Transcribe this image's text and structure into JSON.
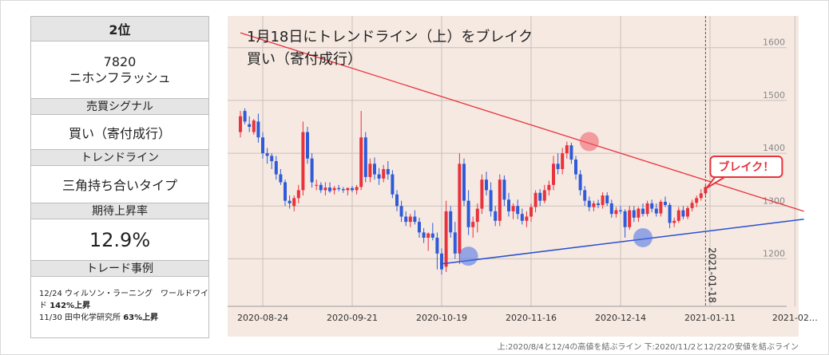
{
  "panel": {
    "rank": "2位",
    "code": "7820",
    "company": "ニホンフラッシュ",
    "signal_header": "売買シグナル",
    "signal_value": "買い（寄付成行）",
    "trend_header": "トレンドライン",
    "trend_value": "三角持ち合いタイプ",
    "rate_header": "期待上昇率",
    "rate_value": "12.9%",
    "cases_header": "トレード事例",
    "case1_text": "12/24 ウィルソン・ラーニング　ワールドワイド ",
    "case1_rate": "142%上昇",
    "case2_text": "11/30 田中化学研究所 ",
    "case2_rate": "63%上昇"
  },
  "footer_note": "上:2020/8/4と12/4の高値を結ぶライン 下:2020/11/2と12/22の安値を結ぶライン",
  "colors": {
    "up": "#e8323c",
    "down": "#2f5bd8",
    "upper_line": "#e8323c",
    "lower_line": "#2a4fd0",
    "bg": "#f6e9e2"
  },
  "chart_data": {
    "type": "candlestick",
    "title_line1": "1月18日にトレンドライン（上）をブレイク",
    "title_line2": "買い（寄付成行）",
    "break_label": "ブレイク！",
    "vline_label": "2021-01-18",
    "x_labels": [
      "2020-08-24",
      "2020-09-21",
      "2020-10-19",
      "2020-11-16",
      "2020-12-14",
      "2021-01-11",
      "2021-02…"
    ],
    "x_label_index": [
      5,
      25,
      45,
      65,
      85,
      105,
      124
    ],
    "y_ticks": [
      1200,
      1300,
      1400,
      1500,
      1600
    ],
    "ylim": [
      1110,
      1660
    ],
    "candles": [
      [
        1440,
        1480,
        1430,
        1470
      ],
      [
        1480,
        1485,
        1455,
        1460
      ],
      [
        1455,
        1470,
        1440,
        1450
      ],
      [
        1440,
        1465,
        1435,
        1462
      ],
      [
        1460,
        1475,
        1420,
        1430
      ],
      [
        1430,
        1440,
        1390,
        1400
      ],
      [
        1400,
        1410,
        1380,
        1395
      ],
      [
        1395,
        1400,
        1370,
        1385
      ],
      [
        1385,
        1395,
        1350,
        1360
      ],
      [
        1360,
        1370,
        1340,
        1345
      ],
      [
        1345,
        1350,
        1300,
        1310
      ],
      [
        1310,
        1320,
        1295,
        1305
      ],
      [
        1300,
        1320,
        1290,
        1315
      ],
      [
        1315,
        1340,
        1305,
        1330
      ],
      [
        1330,
        1460,
        1320,
        1440
      ],
      [
        1440,
        1450,
        1380,
        1390
      ],
      [
        1390,
        1400,
        1335,
        1345
      ],
      [
        1340,
        1350,
        1330,
        1340
      ],
      [
        1340,
        1345,
        1325,
        1330
      ],
      [
        1330,
        1345,
        1320,
        1335
      ],
      [
        1335,
        1345,
        1325,
        1328
      ],
      [
        1330,
        1338,
        1322,
        1334
      ],
      [
        1334,
        1340,
        1328,
        1332
      ],
      [
        1332,
        1336,
        1325,
        1330
      ],
      [
        1330,
        1335,
        1320,
        1334
      ],
      [
        1334,
        1338,
        1326,
        1330
      ],
      [
        1330,
        1340,
        1322,
        1336
      ],
      [
        1336,
        1480,
        1330,
        1430
      ],
      [
        1430,
        1440,
        1345,
        1355
      ],
      [
        1355,
        1390,
        1345,
        1380
      ],
      [
        1380,
        1392,
        1350,
        1360
      ],
      [
        1360,
        1372,
        1340,
        1352
      ],
      [
        1352,
        1378,
        1345,
        1370
      ],
      [
        1370,
        1385,
        1350,
        1360
      ],
      [
        1360,
        1368,
        1315,
        1322
      ],
      [
        1322,
        1330,
        1290,
        1300
      ],
      [
        1300,
        1310,
        1270,
        1280
      ],
      [
        1280,
        1290,
        1262,
        1270
      ],
      [
        1270,
        1285,
        1260,
        1280
      ],
      [
        1280,
        1292,
        1265,
        1270
      ],
      [
        1270,
        1278,
        1240,
        1250
      ],
      [
        1250,
        1258,
        1230,
        1240
      ],
      [
        1240,
        1250,
        1215,
        1248
      ],
      [
        1248,
        1268,
        1235,
        1240
      ],
      [
        1240,
        1250,
        1180,
        1210
      ],
      [
        1210,
        1220,
        1170,
        1180
      ],
      [
        1185,
        1310,
        1175,
        1290
      ],
      [
        1290,
        1300,
        1240,
        1250
      ],
      [
        1250,
        1270,
        1200,
        1210
      ],
      [
        1210,
        1400,
        1190,
        1380
      ],
      [
        1380,
        1390,
        1300,
        1310
      ],
      [
        1310,
        1330,
        1245,
        1260
      ],
      [
        1260,
        1280,
        1240,
        1270
      ],
      [
        1270,
        1305,
        1250,
        1295
      ],
      [
        1295,
        1360,
        1285,
        1350
      ],
      [
        1350,
        1365,
        1320,
        1330
      ],
      [
        1330,
        1345,
        1280,
        1290
      ],
      [
        1290,
        1300,
        1262,
        1272
      ],
      [
        1272,
        1360,
        1262,
        1350
      ],
      [
        1350,
        1358,
        1300,
        1312
      ],
      [
        1312,
        1325,
        1280,
        1290
      ],
      [
        1290,
        1305,
        1275,
        1300
      ],
      [
        1300,
        1312,
        1275,
        1285
      ],
      [
        1285,
        1295,
        1265,
        1272
      ],
      [
        1272,
        1290,
        1260,
        1280
      ],
      [
        1280,
        1305,
        1270,
        1298
      ],
      [
        1298,
        1330,
        1288,
        1325
      ],
      [
        1325,
        1332,
        1300,
        1310
      ],
      [
        1310,
        1340,
        1305,
        1330
      ],
      [
        1330,
        1348,
        1320,
        1340
      ],
      [
        1340,
        1395,
        1330,
        1380
      ],
      [
        1380,
        1400,
        1360,
        1370
      ],
      [
        1370,
        1410,
        1360,
        1400
      ],
      [
        1400,
        1422,
        1390,
        1415
      ],
      [
        1415,
        1420,
        1380,
        1388
      ],
      [
        1388,
        1395,
        1350,
        1360
      ],
      [
        1360,
        1368,
        1320,
        1330
      ],
      [
        1330,
        1338,
        1300,
        1310
      ],
      [
        1310,
        1318,
        1290,
        1298
      ],
      [
        1298,
        1310,
        1290,
        1305
      ],
      [
        1305,
        1312,
        1296,
        1302
      ],
      [
        1302,
        1326,
        1295,
        1320
      ],
      [
        1320,
        1326,
        1300,
        1305
      ],
      [
        1305,
        1312,
        1278,
        1285
      ],
      [
        1285,
        1298,
        1278,
        1292
      ],
      [
        1292,
        1300,
        1285,
        1290
      ],
      [
        1290,
        1294,
        1240,
        1260
      ],
      [
        1260,
        1300,
        1255,
        1292
      ],
      [
        1292,
        1300,
        1270,
        1278
      ],
      [
        1278,
        1298,
        1270,
        1295
      ],
      [
        1295,
        1305,
        1280,
        1285
      ],
      [
        1285,
        1310,
        1280,
        1305
      ],
      [
        1305,
        1312,
        1288,
        1295
      ],
      [
        1295,
        1305,
        1280,
        1286
      ],
      [
        1286,
        1312,
        1280,
        1308
      ],
      [
        1308,
        1318,
        1298,
        1302
      ],
      [
        1302,
        1306,
        1258,
        1268
      ],
      [
        1268,
        1278,
        1260,
        1272
      ],
      [
        1272,
        1298,
        1268,
        1292
      ],
      [
        1292,
        1300,
        1275,
        1280
      ],
      [
        1280,
        1300,
        1275,
        1296
      ],
      [
        1296,
        1312,
        1290,
        1306
      ],
      [
        1306,
        1320,
        1298,
        1315
      ],
      [
        1315,
        1332,
        1310,
        1324
      ],
      [
        1324,
        1340,
        1318,
        1336
      ]
    ],
    "upper_line": {
      "from_index": 0,
      "from_value": 1628,
      "to_index": 126,
      "to_value": 1290
    },
    "lower_line": {
      "from_index": 45,
      "from_value": 1190,
      "to_index": 126,
      "to_value": 1275
    }
  }
}
